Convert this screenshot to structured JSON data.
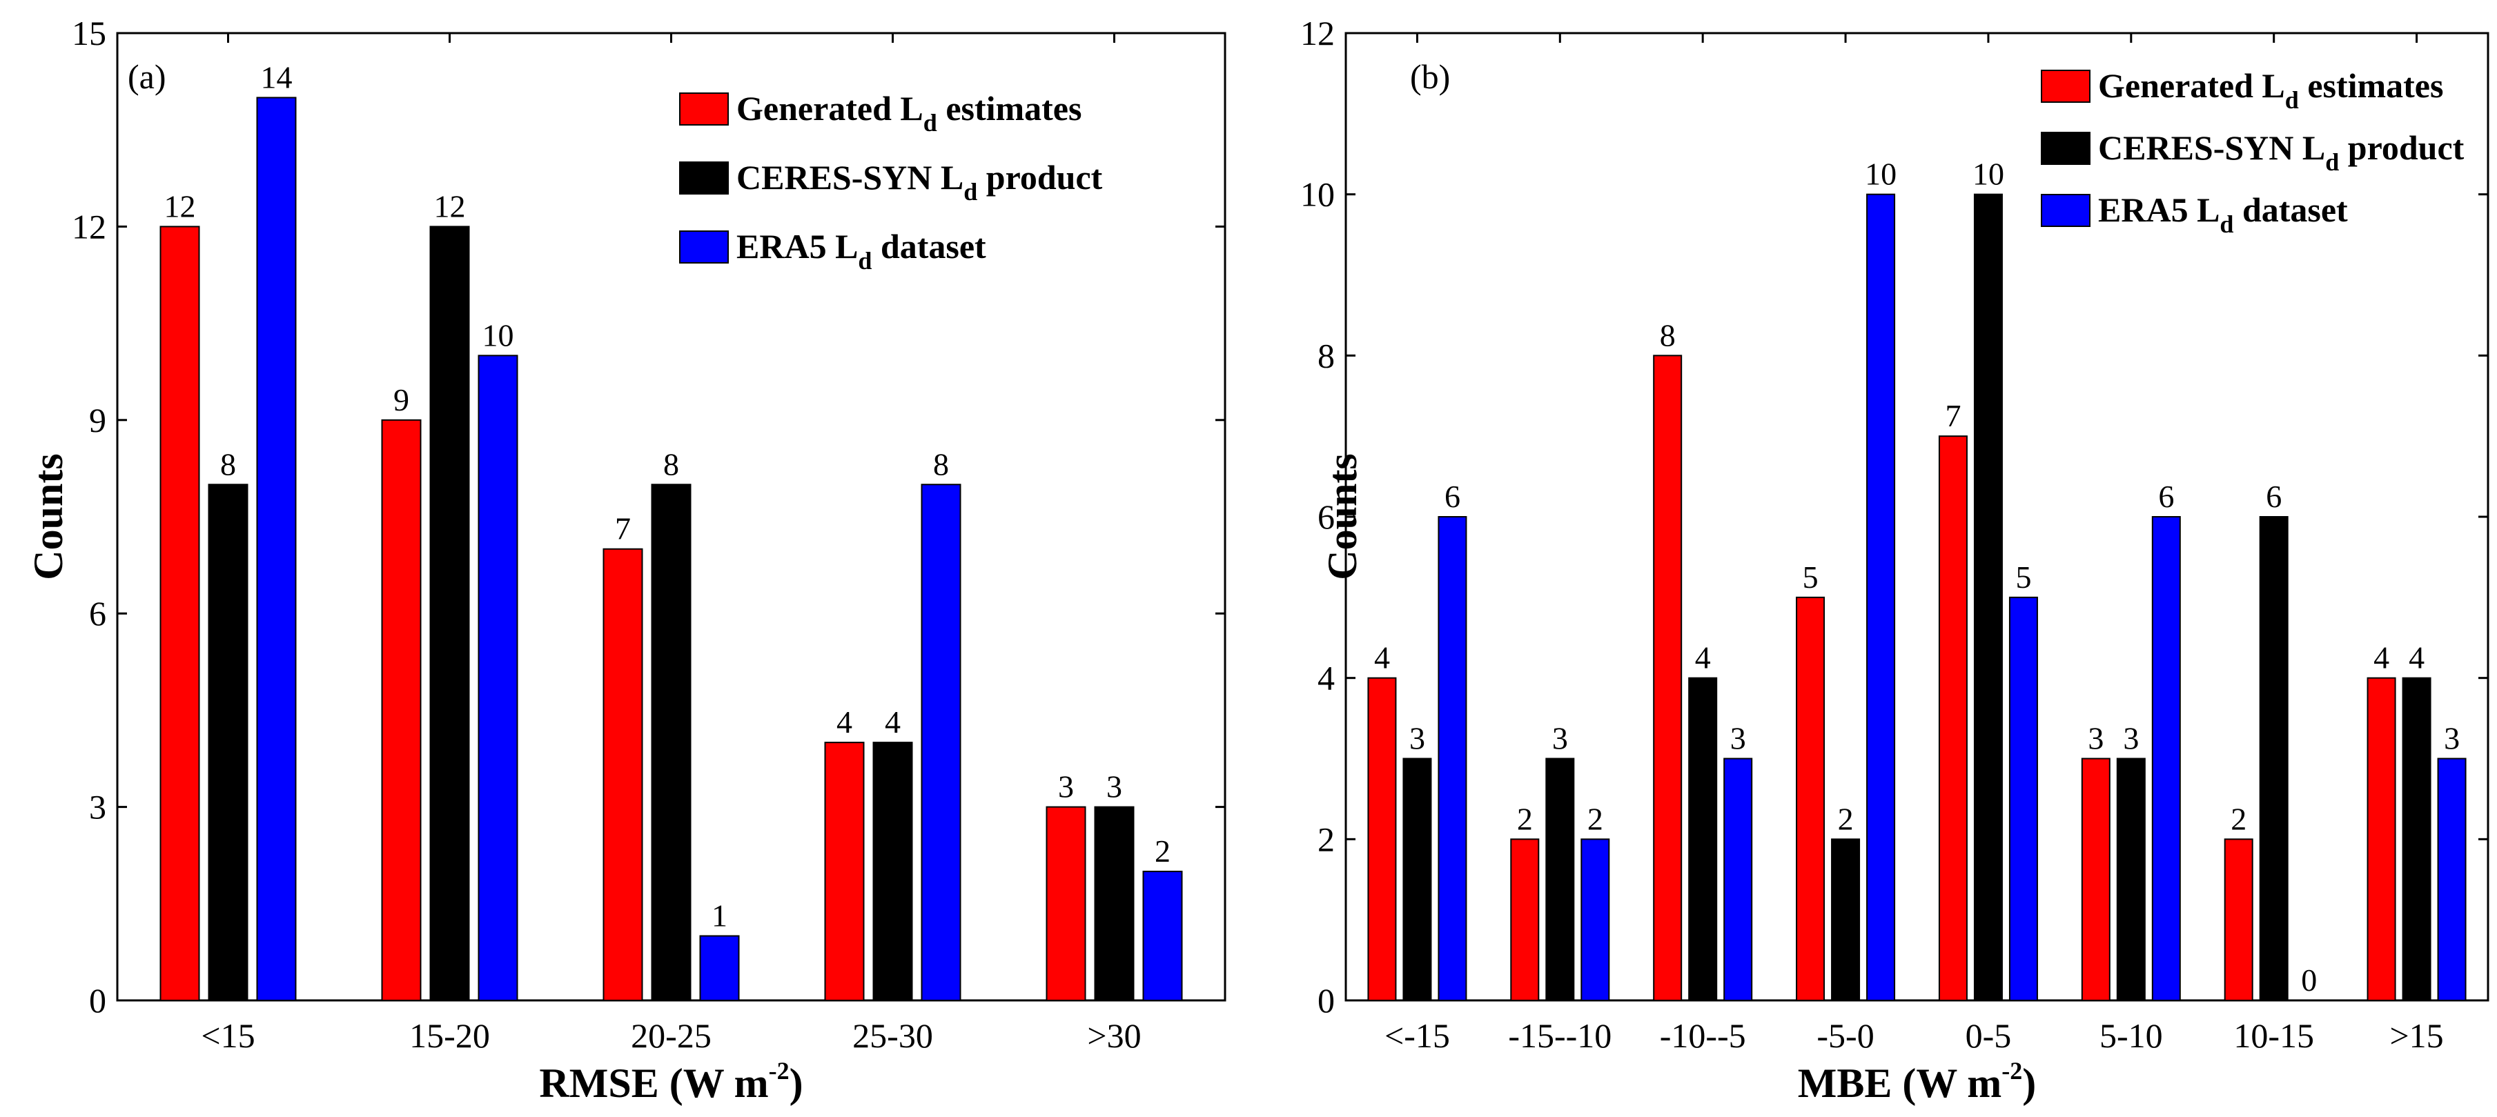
{
  "figure": {
    "panels": [
      {
        "letter": "(a)"
      },
      {
        "letter": "(b)"
      }
    ]
  },
  "legend": [
    {
      "pre": "Generated L",
      "sub": "d",
      "post": " estimates",
      "color": "#ff0000"
    },
    {
      "pre": "CERES-SYN L",
      "sub": "d",
      "post": " product",
      "color": "#000000"
    },
    {
      "pre": "ERA5 L",
      "sub": "d",
      "post": " dataset",
      "color": "#0000ff"
    }
  ],
  "chart_data": [
    {
      "type": "bar",
      "panel": "(a)",
      "categories": [
        "<15",
        "15-20",
        "20-25",
        "25-30",
        ">30"
      ],
      "xlabel": {
        "base": "RMSE (W m",
        "sup": "-2",
        "close": ")"
      },
      "ylabel": "Counts",
      "ylim": [
        0,
        15
      ],
      "yticks": [
        0,
        3,
        6,
        9,
        12,
        15
      ],
      "legend_position": "top-right",
      "series": [
        {
          "name": "Generated Ld estimates",
          "color": "#ff0000",
          "values": [
            12,
            9,
            7,
            4,
            3
          ]
        },
        {
          "name": "CERES-SYN Ld product",
          "color": "#000000",
          "values": [
            8,
            12,
            8,
            4,
            3
          ]
        },
        {
          "name": "ERA5 Ld dataset",
          "color": "#0000ff",
          "values": [
            14,
            10,
            1,
            8,
            2
          ]
        }
      ]
    },
    {
      "type": "bar",
      "panel": "(b)",
      "categories": [
        "<-15",
        "-15--10",
        "-10--5",
        "-5-0",
        "0-5",
        "5-10",
        "10-15",
        ">15"
      ],
      "xlabel": {
        "base": "MBE (W m",
        "sup": "-2",
        "close": ")"
      },
      "ylabel": "Counts",
      "ylim": [
        0,
        12
      ],
      "yticks": [
        0,
        2,
        4,
        6,
        8,
        10,
        12
      ],
      "legend_position": "top-right",
      "series": [
        {
          "name": "Generated Ld estimates",
          "color": "#ff0000",
          "values": [
            4,
            2,
            8,
            5,
            7,
            3,
            2,
            4
          ]
        },
        {
          "name": "CERES-SYN Ld product",
          "color": "#000000",
          "values": [
            3,
            3,
            4,
            2,
            10,
            3,
            6,
            4
          ]
        },
        {
          "name": "ERA5 Ld dataset",
          "color": "#0000ff",
          "values": [
            6,
            2,
            3,
            10,
            5,
            6,
            0,
            3
          ]
        }
      ]
    }
  ]
}
